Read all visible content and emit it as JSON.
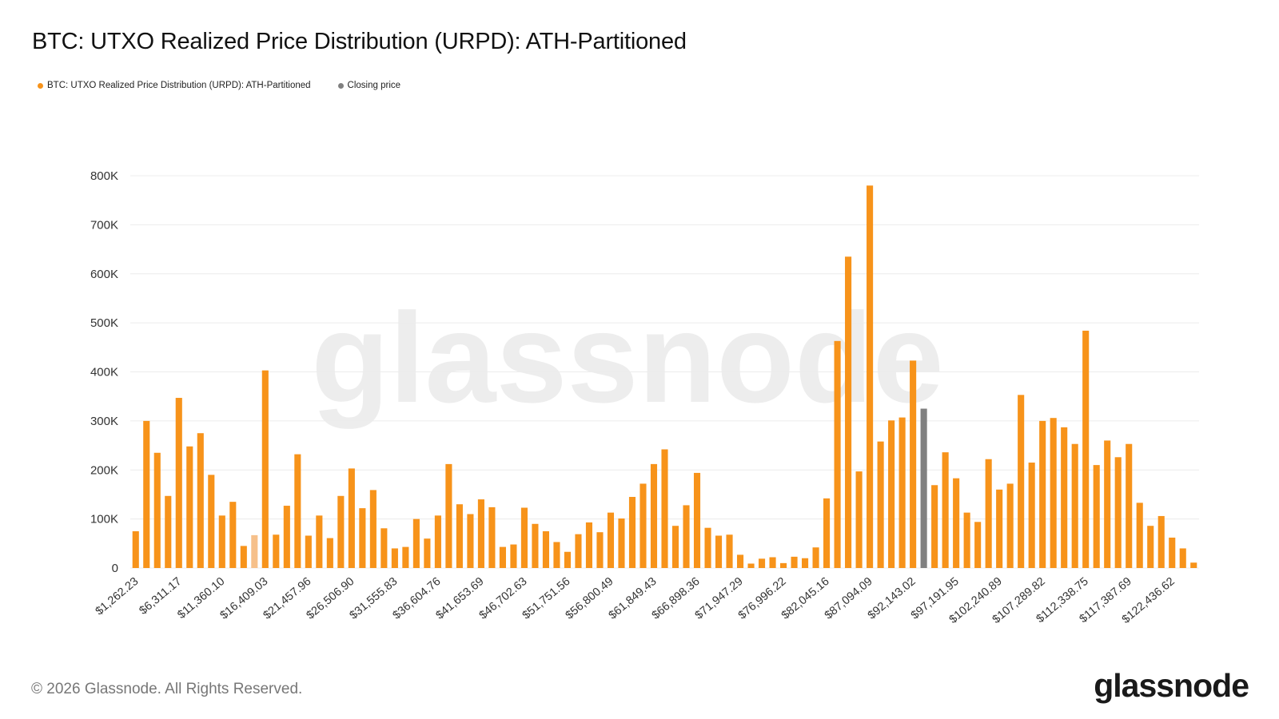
{
  "title": "BTC: UTXO Realized Price Distribution (URPD): ATH-Partitioned",
  "legend": [
    {
      "label": "BTC: UTXO Realized Price Distribution (URPD): ATH-Partitioned",
      "color": "#f7931a"
    },
    {
      "label": "Closing price",
      "color": "#808080"
    }
  ],
  "watermark": "glassnode",
  "footer": {
    "copyright": "© 2026 Glassnode. All Rights Reserved.",
    "brand": "glassnode"
  },
  "chart_data": {
    "type": "bar",
    "ylim": [
      0,
      800000
    ],
    "yticks": [
      0,
      100000,
      200000,
      300000,
      400000,
      500000,
      600000,
      700000,
      800000
    ],
    "ytick_labels": [
      "0",
      "100K",
      "200K",
      "300K",
      "400K",
      "500K",
      "600K",
      "700K",
      "800K"
    ],
    "xtick_labels": [
      "$1,262.23",
      "$6,311.17",
      "$11,360.10",
      "$16,409.03",
      "$21,457.96",
      "$26,506.90",
      "$31,555.83",
      "$36,604.76",
      "$41,653.69",
      "$46,702.63",
      "$51,751.56",
      "$56,800.49",
      "$61,849.43",
      "$66,898.36",
      "$71,947.29",
      "$76,996.22",
      "$82,045.16",
      "$87,094.09",
      "$92,143.02",
      "$97,191.95",
      "$102,240.89",
      "$107,289.82",
      "$112,338.75",
      "$117,387.69",
      "$122,436.62"
    ],
    "bar_color": "#f7931a",
    "highlight_color": "#808080",
    "faded_color": "#f6c08a",
    "grid": true,
    "legend_position": "top-left",
    "values": [
      75000,
      300000,
      235000,
      147000,
      347000,
      248000,
      275000,
      190000,
      107000,
      135000,
      45000,
      67000,
      403000,
      68000,
      127000,
      232000,
      66000,
      107000,
      61000,
      147000,
      203000,
      122000,
      159000,
      81000,
      40000,
      43000,
      100000,
      60000,
      107000,
      212000,
      130000,
      110000,
      140000,
      124000,
      43000,
      48000,
      123000,
      90000,
      75000,
      53000,
      33000,
      69000,
      93000,
      73000,
      113000,
      101000,
      145000,
      172000,
      212000,
      242000,
      86000,
      128000,
      194000,
      82000,
      66000,
      68000,
      27000,
      9000,
      19000,
      22000,
      10000,
      23000,
      20000,
      42000,
      142000,
      463000,
      635000,
      197000,
      780000,
      258000,
      301000,
      307000,
      423000,
      325000,
      169000,
      236000,
      183000,
      113000,
      94000,
      222000,
      160000,
      172000,
      353000,
      215000,
      300000,
      306000,
      287000,
      253000,
      484000,
      210000,
      260000,
      226000,
      253000,
      133000,
      86000,
      106000,
      62000,
      40000,
      11000
    ],
    "closing_price_index": 73,
    "faded_index": 11
  }
}
